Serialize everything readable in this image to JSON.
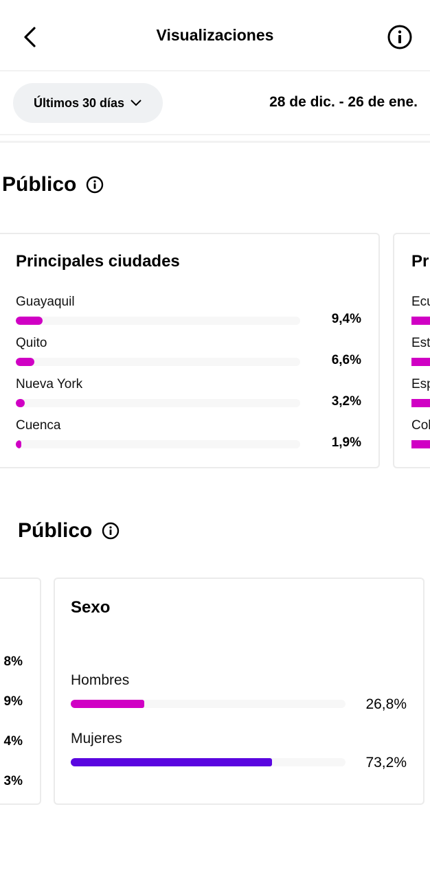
{
  "header": {
    "title": "Visualizaciones",
    "back_icon": "chevron-left-icon",
    "info_icon": "info-icon"
  },
  "filter": {
    "period": "Últimos 30 días",
    "range": "28 de dic. - 26 de ene."
  },
  "colors": {
    "magenta": "#d000c4",
    "purple": "#5a06e0",
    "track": "#f7f7f7"
  },
  "section1": {
    "title": "Público",
    "cities_card": {
      "title": "Principales ciudades",
      "items": [
        {
          "label": "Guayaquil",
          "value": 9.4,
          "text": "9,4%"
        },
        {
          "label": "Quito",
          "value": 6.6,
          "text": "6,6%"
        },
        {
          "label": "Nueva York",
          "value": 3.2,
          "text": "3,2%"
        },
        {
          "label": "Cuenca",
          "value": 1.9,
          "text": "1,9%"
        }
      ]
    },
    "partial_card": {
      "title": "Pr",
      "items": [
        "Ecu",
        "Est",
        "Esp",
        "Col"
      ]
    }
  },
  "section2": {
    "title": "Público",
    "partial_card": {
      "items": [
        "8%",
        "9%",
        "4%",
        "3%"
      ]
    },
    "sex_card": {
      "title": "Sexo",
      "items": [
        {
          "label": "Hombres",
          "value": 26.8,
          "text": "26,8%",
          "color": "#d000c4"
        },
        {
          "label": "Mujeres",
          "value": 73.2,
          "text": "73,2%",
          "color": "#5a06e0"
        }
      ]
    }
  }
}
